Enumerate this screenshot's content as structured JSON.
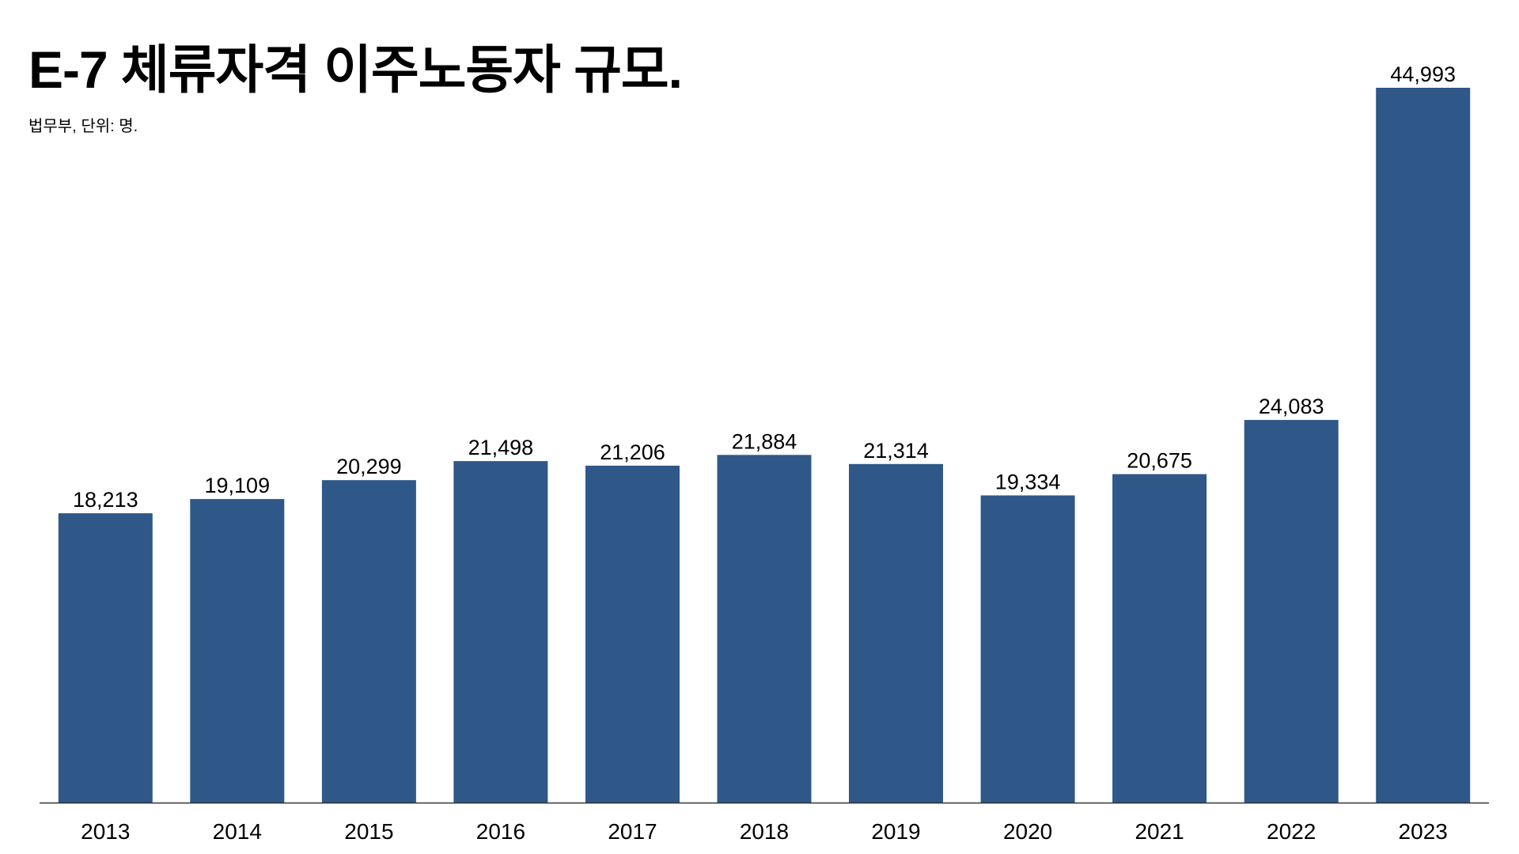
{
  "chart_data": {
    "type": "bar",
    "title": "E-7 체류자격 이주노동자 규모.",
    "subtitle": "법무부, 단위: 명.",
    "categories": [
      "2013",
      "2014",
      "2015",
      "2016",
      "2017",
      "2018",
      "2019",
      "2020",
      "2021",
      "2022",
      "2023"
    ],
    "values": [
      18213,
      19109,
      20299,
      21498,
      21206,
      21884,
      21314,
      19334,
      20675,
      24083,
      44993
    ],
    "value_labels": [
      "18,213",
      "19,109",
      "20,299",
      "21,498",
      "21,206",
      "21,884",
      "21,314",
      "19,334",
      "20,675",
      "24,083",
      "44,993"
    ],
    "xlabel": "",
    "ylabel": "",
    "ylim": [
      0,
      44993
    ],
    "grid": false,
    "legend": "none",
    "bar_color": "#2f5888",
    "axis_color": "#333333"
  }
}
